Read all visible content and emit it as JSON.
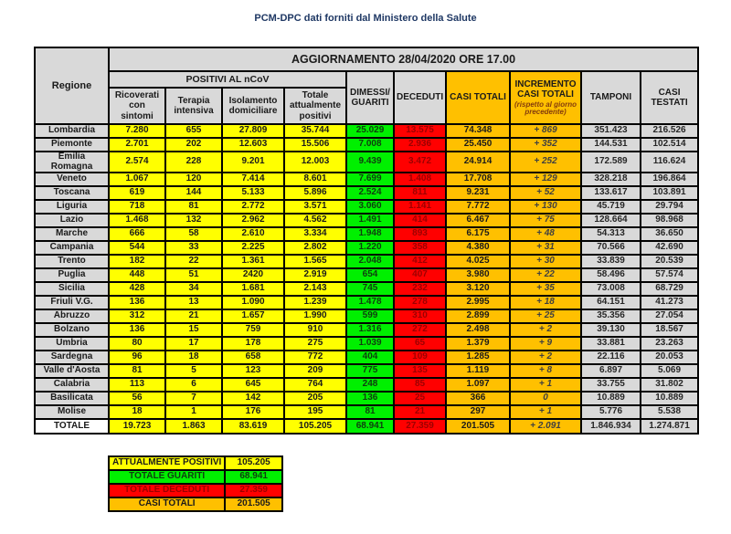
{
  "title": "PCM-DPC dati forniti dal Ministero della Salute",
  "colors": {
    "positivi_yellow": "#FFFF00",
    "guariti_green": "#00F000",
    "deceduti_red": "#FF0000",
    "deceduti_text": "#9C0000",
    "casi_totali_orange": "#FFC000",
    "neutral_gray": "#D9D9D9",
    "border_black": "#000000"
  },
  "table": {
    "update_header": "AGGIORNAMENTO 28/04/2020 ORE 17.00",
    "corner_label": "Regione",
    "group_header": "POSITIVI AL nCoV",
    "col_labels": {
      "ricoverati": "Ricoverati con sintomi",
      "terapia": "Terapia intensiva",
      "isolamento": "Isolamento domiciliare",
      "totale_positivi": "Totale attualmente positivi",
      "dimessi": "DIMESSI/ GUARITI",
      "deceduti": "DECEDUTI",
      "casi_totali": "CASI TOTALI",
      "incremento": "INCREMENTO CASI TOTALI",
      "incremento_note": "(rispetto al giorno precedente)",
      "tamponi": "TAMPONI",
      "casi_testati": "CASI TESTATI"
    },
    "rows": [
      {
        "regione": "Lombardia",
        "values": [
          "7.280",
          "655",
          "27.809",
          "35.744",
          "25.029",
          "13.575",
          "74.348",
          "+ 869",
          "351.423",
          "216.526"
        ]
      },
      {
        "regione": "Piemonte",
        "values": [
          "2.701",
          "202",
          "12.603",
          "15.506",
          "7.008",
          "2.936",
          "25.450",
          "+ 352",
          "144.531",
          "102.514"
        ]
      },
      {
        "regione": "Emilia Romagna",
        "values": [
          "2.574",
          "228",
          "9.201",
          "12.003",
          "9.439",
          "3.472",
          "24.914",
          "+ 252",
          "172.589",
          "116.624"
        ]
      },
      {
        "regione": "Veneto",
        "values": [
          "1.067",
          "120",
          "7.414",
          "8.601",
          "7.699",
          "1.408",
          "17.708",
          "+ 129",
          "328.218",
          "196.864"
        ]
      },
      {
        "regione": "Toscana",
        "values": [
          "619",
          "144",
          "5.133",
          "5.896",
          "2.524",
          "811",
          "9.231",
          "+ 52",
          "133.617",
          "103.891"
        ]
      },
      {
        "regione": "Liguria",
        "values": [
          "718",
          "81",
          "2.772",
          "3.571",
          "3.060",
          "1.141",
          "7.772",
          "+ 130",
          "45.719",
          "29.794"
        ]
      },
      {
        "regione": "Lazio",
        "values": [
          "1.468",
          "132",
          "2.962",
          "4.562",
          "1.491",
          "414",
          "6.467",
          "+ 75",
          "128.664",
          "98.968"
        ]
      },
      {
        "regione": "Marche",
        "values": [
          "666",
          "58",
          "2.610",
          "3.334",
          "1.948",
          "893",
          "6.175",
          "+ 48",
          "54.313",
          "36.650"
        ]
      },
      {
        "regione": "Campania",
        "values": [
          "544",
          "33",
          "2.225",
          "2.802",
          "1.220",
          "358",
          "4.380",
          "+ 31",
          "70.566",
          "42.690"
        ]
      },
      {
        "regione": "Trento",
        "values": [
          "182",
          "22",
          "1.361",
          "1.565",
          "2.048",
          "412",
          "4.025",
          "+ 30",
          "33.839",
          "20.539"
        ]
      },
      {
        "regione": "Puglia",
        "values": [
          "448",
          "51",
          "2420",
          "2.919",
          "654",
          "407",
          "3.980",
          "+ 22",
          "58.496",
          "57.574"
        ]
      },
      {
        "regione": "Sicilia",
        "values": [
          "428",
          "34",
          "1.681",
          "2.143",
          "745",
          "232",
          "3.120",
          "+ 35",
          "73.008",
          "68.729"
        ]
      },
      {
        "regione": "Friuli V.G.",
        "values": [
          "136",
          "13",
          "1.090",
          "1.239",
          "1.478",
          "278",
          "2.995",
          "+ 18",
          "64.151",
          "41.273"
        ]
      },
      {
        "regione": "Abruzzo",
        "values": [
          "312",
          "21",
          "1.657",
          "1.990",
          "599",
          "310",
          "2.899",
          "+ 25",
          "35.356",
          "27.054"
        ]
      },
      {
        "regione": "Bolzano",
        "values": [
          "136",
          "15",
          "759",
          "910",
          "1.316",
          "272",
          "2.498",
          "+ 2",
          "39.130",
          "18.567"
        ]
      },
      {
        "regione": "Umbria",
        "values": [
          "80",
          "17",
          "178",
          "275",
          "1.039",
          "65",
          "1.379",
          "+ 9",
          "33.881",
          "23.263"
        ]
      },
      {
        "regione": "Sardegna",
        "values": [
          "96",
          "18",
          "658",
          "772",
          "404",
          "109",
          "1.285",
          "+ 2",
          "22.116",
          "20.053"
        ]
      },
      {
        "regione": "Valle d'Aosta",
        "values": [
          "81",
          "5",
          "123",
          "209",
          "775",
          "135",
          "1.119",
          "+ 8",
          "6.897",
          "5.069"
        ]
      },
      {
        "regione": "Calabria",
        "values": [
          "113",
          "6",
          "645",
          "764",
          "248",
          "85",
          "1.097",
          "+ 1",
          "33.755",
          "31.802"
        ]
      },
      {
        "regione": "Basilicata",
        "values": [
          "56",
          "7",
          "142",
          "205",
          "136",
          "25",
          "366",
          "0",
          "10.889",
          "10.889"
        ]
      },
      {
        "regione": "Molise",
        "values": [
          "18",
          "1",
          "176",
          "195",
          "81",
          "21",
          "297",
          "+ 1",
          "5.776",
          "5.538"
        ]
      }
    ],
    "totale": {
      "regione": "TOTALE",
      "values": [
        "19.723",
        "1.863",
        "83.619",
        "105.205",
        "68.941",
        "27.359",
        "201.505",
        "+ 2.091",
        "1.846.934",
        "1.274.871"
      ]
    }
  },
  "legend": {
    "rows": [
      {
        "label": "ATTUALMENTE POSITIVI",
        "value": "105.205",
        "color": "yellow"
      },
      {
        "label": "TOTALE GUARITI",
        "value": "68.941",
        "color": "green"
      },
      {
        "label": "TOTALE DECEDUTI",
        "value": "27.359",
        "color": "red"
      },
      {
        "label": "CASI TOTALI",
        "value": "201.505",
        "color": "orange"
      }
    ]
  }
}
